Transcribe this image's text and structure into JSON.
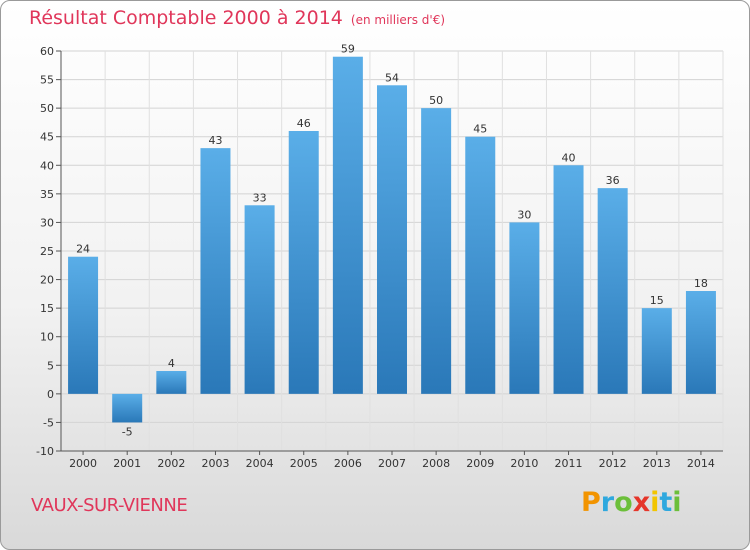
{
  "chart_data": {
    "type": "bar",
    "title": "Résultat Comptable 2000 à 2014",
    "subtitle": "(en milliers d'€)",
    "categories": [
      "2000",
      "2001",
      "2002",
      "2003",
      "2004",
      "2005",
      "2006",
      "2007",
      "2008",
      "2009",
      "2010",
      "2011",
      "2012",
      "2013",
      "2014"
    ],
    "values": [
      24,
      -5,
      4,
      43,
      33,
      46,
      59,
      54,
      50,
      45,
      30,
      40,
      36,
      15,
      18
    ],
    "ylim": [
      -10,
      60
    ],
    "yticks": [
      60,
      55,
      50,
      45,
      40,
      35,
      30,
      25,
      20,
      15,
      10,
      5,
      0,
      -5,
      -10
    ],
    "grid": true,
    "xlabel": "",
    "ylabel": "",
    "bar_color_top": "#5aaee8",
    "bar_color_bottom": "#2a78b8"
  },
  "footer": {
    "commune": "VAUX-SUR-VIENNE",
    "logo_letters": [
      "P",
      "r",
      "o",
      "x",
      "i",
      "t",
      "i"
    ],
    "logo_colors": [
      "#f29400",
      "#2fa8de",
      "#6cbf3a",
      "#e5352a",
      "#f2c500",
      "#2fa8de",
      "#6cbf3a"
    ]
  }
}
